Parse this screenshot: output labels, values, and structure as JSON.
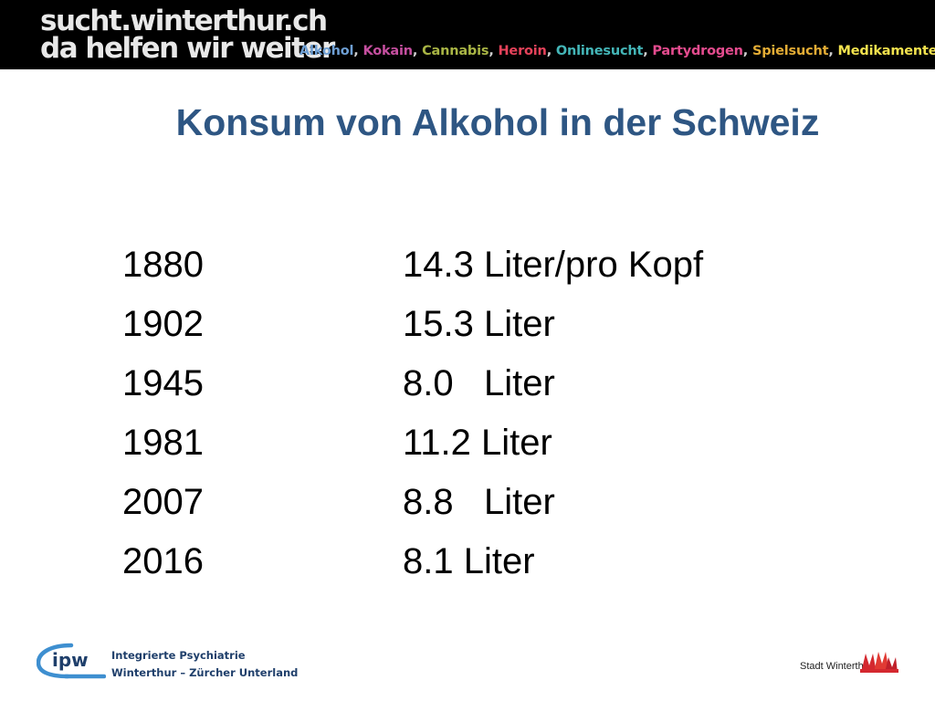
{
  "header": {
    "brand_line1": "sucht.winterthur.ch",
    "brand_line2": "da helfen wir weiter",
    "topics": [
      {
        "label": "Alkohol",
        "color": "#6e9fd4"
      },
      {
        "label": "Kokain",
        "color": "#c64fa0"
      },
      {
        "label": "Cannabis",
        "color": "#a9b545"
      },
      {
        "label": "Heroin",
        "color": "#e5425a"
      },
      {
        "label": "Onlinesucht",
        "color": "#44b6b8"
      },
      {
        "label": "Partydrogen",
        "color": "#e54c8f"
      },
      {
        "label": "Spielsucht",
        "color": "#e3ac35"
      },
      {
        "label": "Medikamente",
        "color": "#f2e24e"
      }
    ]
  },
  "slide": {
    "title": "Konsum von Alkohol in der Schweiz",
    "rows": [
      {
        "year": "1880",
        "amount": "14.3 Liter/pro Kopf"
      },
      {
        "year": "1902",
        "amount": "15.3 Liter"
      },
      {
        "year": "1945",
        "amount": "8.0   Liter"
      },
      {
        "year": "1981",
        "amount": "11.2 Liter"
      },
      {
        "year": "2007",
        "amount": "8.8   Liter"
      },
      {
        "year": "2016",
        "amount": "8.1 Liter"
      }
    ]
  },
  "footer": {
    "ipw_logo_text": "ipw",
    "ipw_line1": "Integrierte Psychiatrie",
    "ipw_line2": "Winterthur – Zürcher Unterland",
    "city_label": "Stadt Winterthur"
  }
}
